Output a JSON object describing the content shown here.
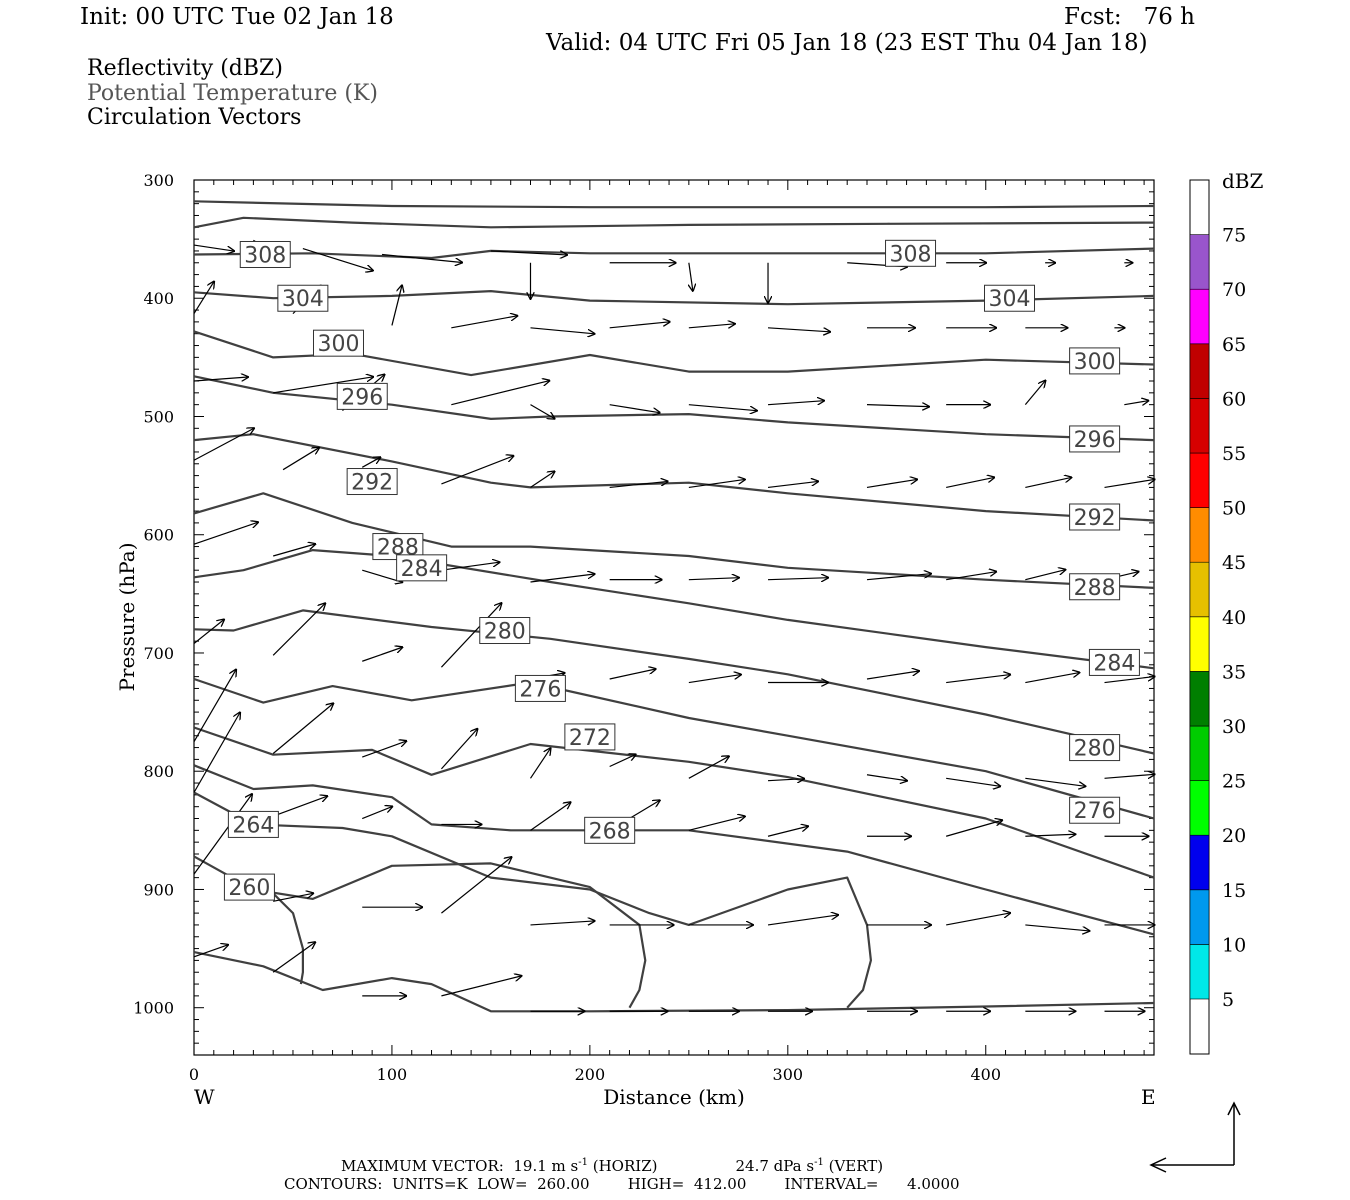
{
  "header": {
    "init": "Init: 00 UTC Tue 02 Jan 18",
    "fcst": "Fcst:   76 h",
    "valid": "Valid: 04 UTC Fri 05 Jan 18 (23 EST Thu 04 Jan 18)"
  },
  "fields": {
    "reflectivity": "Reflectivity (dBZ)",
    "theta": "Potential Temperature (K)",
    "vectors": "Circulation Vectors"
  },
  "chart_data": {
    "type": "line",
    "xlabel": "Distance (km)",
    "ylabel": "Pressure (hPa)",
    "xlim": [
      0,
      485
    ],
    "ylim": [
      1040,
      300
    ],
    "x_ticks": [
      0,
      100,
      200,
      300,
      400
    ],
    "y_ticks": [
      300,
      400,
      500,
      600,
      700,
      800,
      900,
      1000
    ],
    "x_end_labels": {
      "left": "W",
      "right": "E"
    },
    "theta_color": "#404040",
    "vector_color": "#000000",
    "isentropes": [
      {
        "x": [
          0,
          100,
          200,
          300,
          400,
          485
        ],
        "y": [
          318,
          322,
          323,
          323,
          323,
          322
        ]
      },
      {
        "x": [
          0,
          25,
          80,
          150,
          250,
          350,
          485
        ],
        "y": [
          340,
          332,
          336,
          340,
          338,
          337,
          336
        ]
      },
      {
        "label": "308",
        "label_x": [
          36,
          362
        ],
        "label_y": [
          363,
          362
        ],
        "x": [
          0,
          60,
          120,
          150,
          200,
          300,
          400,
          485
        ],
        "y": [
          363,
          362,
          366,
          360,
          362,
          362,
          362,
          358
        ]
      },
      {
        "label": "304",
        "label_x": [
          55,
          412
        ],
        "label_y": [
          400,
          400
        ],
        "x": [
          0,
          40,
          100,
          150,
          200,
          300,
          400,
          485
        ],
        "y": [
          395,
          400,
          398,
          394,
          402,
          405,
          402,
          398
        ]
      },
      {
        "label": "300",
        "label_x": [
          73,
          455
        ],
        "label_y": [
          438,
          453
        ],
        "x": [
          0,
          40,
          80,
          140,
          200,
          250,
          300,
          400,
          485
        ],
        "y": [
          428,
          450,
          447,
          465,
          448,
          462,
          462,
          452,
          456
        ]
      },
      {
        "label": "296",
        "label_x": [
          85,
          455
        ],
        "label_y": [
          483,
          519
        ],
        "x": [
          0,
          40,
          100,
          150,
          180,
          250,
          300,
          400,
          485
        ],
        "y": [
          466,
          480,
          490,
          502,
          500,
          498,
          505,
          515,
          520
        ]
      },
      {
        "label": "292",
        "label_x": [
          90,
          455
        ],
        "label_y": [
          555,
          585
        ],
        "x": [
          0,
          30,
          100,
          150,
          170,
          250,
          300,
          400,
          485
        ],
        "y": [
          520,
          515,
          538,
          556,
          560,
          556,
          565,
          580,
          588
        ]
      },
      {
        "label": "288",
        "label_x": [
          103,
          455
        ],
        "label_y": [
          610,
          644
        ],
        "x": [
          0,
          35,
          80,
          130,
          170,
          250,
          300,
          400,
          485
        ],
        "y": [
          582,
          565,
          590,
          610,
          610,
          618,
          628,
          638,
          645
        ]
      },
      {
        "label": "284",
        "label_x": [
          115,
          465
        ],
        "label_y": [
          628,
          708
        ],
        "x": [
          0,
          25,
          60,
          100,
          180,
          250,
          300,
          400,
          485
        ],
        "y": [
          636,
          630,
          613,
          618,
          640,
          658,
          672,
          695,
          713
        ]
      },
      {
        "label": "280",
        "label_x": [
          157,
          455
        ],
        "label_y": [
          681,
          780
        ],
        "x": [
          0,
          20,
          55,
          120,
          180,
          250,
          300,
          400,
          485
        ],
        "y": [
          680,
          681,
          664,
          678,
          688,
          705,
          718,
          752,
          785
        ]
      },
      {
        "label": "276",
        "label_x": [
          175,
          455
        ],
        "label_y": [
          730,
          833
        ],
        "x": [
          0,
          35,
          70,
          110,
          170,
          250,
          300,
          400,
          485
        ],
        "y": [
          722,
          742,
          728,
          740,
          725,
          755,
          770,
          800,
          840
        ]
      },
      {
        "label": "272",
        "label_x": [
          200
        ],
        "label_y": [
          771
        ],
        "x": [
          0,
          40,
          90,
          120,
          170,
          250,
          300,
          400,
          485
        ],
        "y": [
          763,
          786,
          782,
          803,
          777,
          792,
          805,
          840,
          890
        ]
      },
      {
        "label": "268",
        "label_x": [
          210
        ],
        "label_y": [
          850
        ],
        "x": [
          0,
          30,
          60,
          100,
          120,
          160,
          250,
          330,
          400,
          485
        ],
        "y": [
          795,
          815,
          812,
          822,
          845,
          850,
          850,
          868,
          900,
          938
        ]
      },
      {
        "label": "264",
        "label_x": [
          30
        ],
        "label_y": [
          845
        ],
        "x": [
          0,
          30,
          75,
          100,
          150,
          200,
          230,
          250,
          300,
          330,
          340,
          342,
          338,
          330
        ],
        "y": [
          818,
          845,
          848,
          855,
          890,
          900,
          920,
          930,
          900,
          890,
          930,
          960,
          985,
          1000
        ]
      },
      {
        "label": "260",
        "label_x": [
          28
        ],
        "label_y": [
          898
        ],
        "x": [
          0,
          30,
          60,
          100,
          150,
          200,
          225,
          228,
          225,
          220
        ],
        "y": [
          872,
          900,
          908,
          880,
          878,
          898,
          930,
          960,
          985,
          1000
        ]
      },
      {
        "x": [
          38,
          50,
          55,
          55,
          54
        ],
        "y": [
          900,
          920,
          950,
          970,
          980
        ]
      },
      {
        "x": [
          0,
          35,
          65,
          100,
          120,
          150,
          200,
          300,
          400,
          485
        ],
        "y": [
          953,
          965,
          985,
          975,
          980,
          1003,
          1003,
          1002,
          999,
          996
        ]
      }
    ],
    "vectors": [
      [
        0,
        355,
        20,
        3
      ],
      [
        30,
        351,
        10,
        6
      ],
      [
        55,
        358,
        35,
        11
      ],
      [
        95,
        363,
        40,
        4
      ],
      [
        150,
        360,
        38,
        2
      ],
      [
        170,
        370,
        0,
        18
      ],
      [
        210,
        370,
        33,
        0
      ],
      [
        250,
        370,
        2,
        14
      ],
      [
        290,
        370,
        0,
        20
      ],
      [
        330,
        370,
        30,
        2
      ],
      [
        380,
        370,
        20,
        0
      ],
      [
        430,
        370,
        5,
        0
      ],
      [
        470,
        370,
        4,
        0
      ],
      [
        0,
        413,
        10,
        -16
      ],
      [
        50,
        413,
        14,
        -14
      ],
      [
        100,
        423,
        5,
        -20
      ],
      [
        130,
        425,
        33,
        -6
      ],
      [
        170,
        425,
        32,
        3
      ],
      [
        210,
        425,
        30,
        -3
      ],
      [
        250,
        425,
        23,
        -2
      ],
      [
        290,
        425,
        31,
        2
      ],
      [
        340,
        425,
        24,
        0
      ],
      [
        380,
        425,
        25,
        0
      ],
      [
        420,
        425,
        21,
        0
      ],
      [
        465,
        425,
        5,
        0
      ],
      [
        0,
        470,
        27,
        -2
      ],
      [
        40,
        480,
        50,
        -8
      ],
      [
        75,
        495,
        21,
        -18
      ],
      [
        130,
        490,
        49,
        -12
      ],
      [
        170,
        490,
        12,
        7
      ],
      [
        210,
        490,
        25,
        4
      ],
      [
        250,
        490,
        34,
        3
      ],
      [
        290,
        490,
        28,
        -2
      ],
      [
        340,
        490,
        31,
        1
      ],
      [
        380,
        490,
        22,
        0
      ],
      [
        420,
        490,
        10,
        -12
      ],
      [
        470,
        490,
        12,
        -2
      ],
      [
        0,
        537,
        30,
        -16
      ],
      [
        45,
        545,
        18,
        -11
      ],
      [
        85,
        543,
        9,
        -5
      ],
      [
        125,
        557,
        36,
        -14
      ],
      [
        170,
        560,
        12,
        -8
      ],
      [
        210,
        560,
        29,
        -3
      ],
      [
        250,
        560,
        28,
        -4
      ],
      [
        290,
        560,
        25,
        -3
      ],
      [
        340,
        560,
        25,
        -4
      ],
      [
        380,
        560,
        24,
        -5
      ],
      [
        420,
        560,
        23,
        -5
      ],
      [
        460,
        560,
        25,
        -4
      ],
      [
        0,
        608,
        32,
        -11
      ],
      [
        40,
        618,
        21,
        -6
      ],
      [
        85,
        630,
        20,
        6
      ],
      [
        125,
        630,
        29,
        -4
      ],
      [
        170,
        640,
        32,
        -4
      ],
      [
        210,
        638,
        26,
        0
      ],
      [
        250,
        638,
        25,
        -1
      ],
      [
        290,
        638,
        30,
        -1
      ],
      [
        340,
        638,
        32,
        -3
      ],
      [
        380,
        638,
        25,
        -4
      ],
      [
        420,
        638,
        20,
        -5
      ],
      [
        460,
        638,
        17,
        -4
      ],
      [
        0,
        692,
        15,
        -12
      ],
      [
        40,
        702,
        26,
        -26
      ],
      [
        85,
        707,
        20,
        -7
      ],
      [
        125,
        712,
        30,
        -32
      ],
      [
        170,
        722,
        17,
        -3
      ],
      [
        210,
        722,
        23,
        -5
      ],
      [
        250,
        725,
        26,
        -4
      ],
      [
        290,
        725,
        30,
        0
      ],
      [
        340,
        722,
        26,
        -4
      ],
      [
        380,
        725,
        32,
        -4
      ],
      [
        420,
        725,
        27,
        -5
      ],
      [
        460,
        725,
        25,
        -3
      ],
      [
        0,
        775,
        21,
        -36
      ],
      [
        40,
        785,
        30,
        -25
      ],
      [
        85,
        788,
        22,
        -8
      ],
      [
        125,
        798,
        18,
        -20
      ],
      [
        170,
        806,
        10,
        -15
      ],
      [
        210,
        796,
        13,
        -6
      ],
      [
        250,
        806,
        20,
        -11
      ],
      [
        290,
        808,
        18,
        -1
      ],
      [
        340,
        803,
        20,
        3
      ],
      [
        380,
        806,
        27,
        4
      ],
      [
        420,
        806,
        30,
        4
      ],
      [
        460,
        806,
        25,
        -2
      ],
      [
        0,
        818,
        23,
        -40
      ],
      [
        40,
        838,
        27,
        -10
      ],
      [
        85,
        840,
        15,
        -6
      ],
      [
        125,
        845,
        20,
        0
      ],
      [
        170,
        850,
        20,
        -14
      ],
      [
        210,
        850,
        25,
        -15
      ],
      [
        250,
        850,
        28,
        -7
      ],
      [
        290,
        855,
        20,
        -5
      ],
      [
        340,
        855,
        22,
        0
      ],
      [
        380,
        855,
        28,
        -8
      ],
      [
        420,
        855,
        25,
        -1
      ],
      [
        460,
        855,
        22,
        0
      ],
      [
        0,
        887,
        29,
        -40
      ],
      [
        40,
        910,
        20,
        -4
      ],
      [
        85,
        915,
        30,
        0
      ],
      [
        125,
        920,
        35,
        -28
      ],
      [
        170,
        930,
        32,
        -2
      ],
      [
        210,
        930,
        32,
        0
      ],
      [
        250,
        930,
        32,
        0
      ],
      [
        290,
        930,
        35,
        -5
      ],
      [
        340,
        930,
        32,
        0
      ],
      [
        380,
        930,
        32,
        -6
      ],
      [
        420,
        930,
        32,
        3
      ],
      [
        460,
        930,
        25,
        0
      ],
      [
        0,
        957,
        17,
        -6
      ],
      [
        40,
        970,
        21,
        -15
      ],
      [
        85,
        990,
        22,
        0
      ],
      [
        125,
        990,
        40,
        -10
      ],
      [
        170,
        1003,
        27,
        0
      ],
      [
        210,
        1003,
        29,
        0
      ],
      [
        250,
        1003,
        25,
        0
      ],
      [
        290,
        1003,
        22,
        0
      ],
      [
        340,
        1003,
        25,
        0
      ],
      [
        380,
        1003,
        22,
        0
      ],
      [
        420,
        1003,
        25,
        0
      ],
      [
        460,
        1003,
        20,
        0
      ]
    ],
    "colorbar": {
      "label": "dBZ",
      "levels": [
        5,
        10,
        15,
        20,
        25,
        30,
        35,
        40,
        45,
        50,
        55,
        60,
        65,
        70,
        75
      ],
      "colors": [
        "#00e8e8",
        "#0099ee",
        "#0000ee",
        "#00ff00",
        "#00cc00",
        "#007f00",
        "#ffff00",
        "#e6c000",
        "#ff8c00",
        "#ff0000",
        "#d60000",
        "#c00000",
        "#ff00ff",
        "#9955cc"
      ]
    }
  },
  "footer": {
    "max_vector": "MAXIMUM VECTOR:  19.1 m s",
    "horiz_unit": "-1",
    "horiz_label": " (HORIZ)",
    "vert_value": "24.7 dPa s",
    "vert_unit": "-1",
    "vert_label": " (VERT)",
    "contours": "CONTOURS:  UNITS=K  LOW=  260.00        HIGH=  412.00        INTERVAL=      4.0000"
  }
}
